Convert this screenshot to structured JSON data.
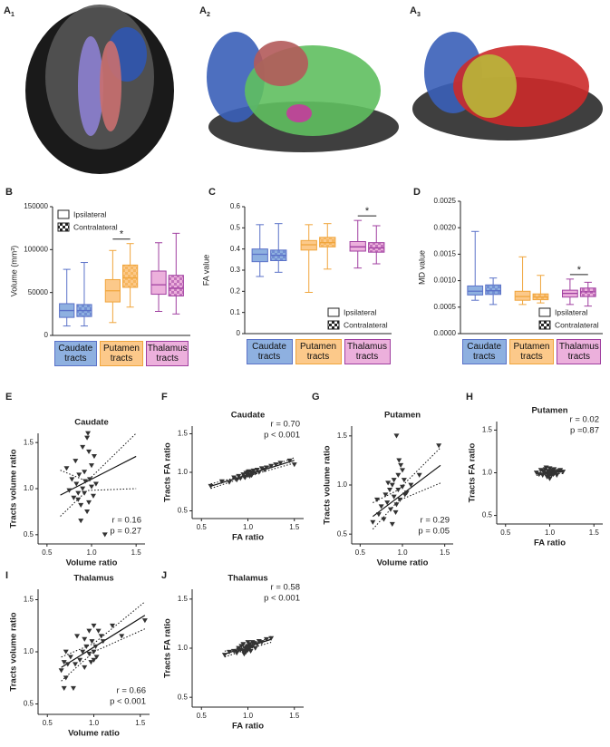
{
  "images": [
    {
      "label": "A",
      "sub": "1"
    },
    {
      "label": "A",
      "sub": "2"
    },
    {
      "label": "A",
      "sub": "3"
    }
  ],
  "chart_data": [
    {
      "type": "box",
      "panel": "B",
      "ylabel": "Volume (mm³)",
      "categories": [
        "Caudate tracts",
        "Putamen tracts",
        "Thalamus tracts"
      ],
      "category_colors": [
        "#8eb0e0",
        "#fcc98a",
        "#ecb0dc"
      ],
      "edge_colors": [
        "#5b72c8",
        "#f0a53c",
        "#a03fa0"
      ],
      "series": [
        {
          "name": "Ipsilateral",
          "pattern": "solid",
          "min": [
            11000,
            15000,
            28000
          ],
          "q1": [
            21000,
            39000,
            48000
          ],
          "median": [
            29000,
            52000,
            59000
          ],
          "q3": [
            37000,
            65000,
            75000
          ],
          "max": [
            77000,
            99000,
            108000
          ]
        },
        {
          "name": "Contralateral",
          "pattern": "checker",
          "min": [
            11000,
            33000,
            25000
          ],
          "q1": [
            22000,
            56000,
            46000
          ],
          "median": [
            29000,
            67000,
            55000
          ],
          "q3": [
            36000,
            82000,
            70000
          ],
          "max": [
            85000,
            107000,
            119000
          ]
        }
      ],
      "ylim": [
        0,
        150000
      ],
      "yticks": [
        0,
        50000,
        100000,
        150000
      ],
      "legend": "upper left",
      "annotations": [
        {
          "text": "*",
          "category": 1
        }
      ]
    },
    {
      "type": "box",
      "panel": "C",
      "ylabel": "FA value",
      "categories": [
        "Caudate tracts",
        "Putamen tracts",
        "Thalamus tracts"
      ],
      "category_colors": [
        "#8eb0e0",
        "#fcc98a",
        "#ecb0dc"
      ],
      "edge_colors": [
        "#5b72c8",
        "#f0a53c",
        "#a03fa0"
      ],
      "series": [
        {
          "name": "Ipsilateral",
          "pattern": "solid",
          "min": [
            0.27,
            0.195,
            0.31
          ],
          "q1": [
            0.34,
            0.395,
            0.39
          ],
          "median": [
            0.375,
            0.42,
            0.41
          ],
          "q3": [
            0.4,
            0.44,
            0.435
          ],
          "max": [
            0.515,
            0.515,
            0.535
          ]
        },
        {
          "name": "Contralateral",
          "pattern": "checker",
          "min": [
            0.29,
            0.305,
            0.33
          ],
          "q1": [
            0.345,
            0.41,
            0.385
          ],
          "median": [
            0.37,
            0.43,
            0.405
          ],
          "q3": [
            0.395,
            0.455,
            0.43
          ],
          "max": [
            0.52,
            0.52,
            0.51
          ]
        }
      ],
      "ylim": [
        0,
        0.6
      ],
      "yticks": [
        0,
        0.1,
        0.2,
        0.3,
        0.4,
        0.5,
        0.6
      ],
      "legend": "lower right",
      "annotations": [
        {
          "text": "*",
          "category": 2
        }
      ]
    },
    {
      "type": "box",
      "panel": "D",
      "ylabel": "MD value",
      "categories": [
        "Caudate tracts",
        "Putamen tracts",
        "Thalamus tracts"
      ],
      "category_colors": [
        "#8eb0e0",
        "#fcc98a",
        "#ecb0dc"
      ],
      "edge_colors": [
        "#5b72c8",
        "#f0a53c",
        "#a03fa0"
      ],
      "series": [
        {
          "name": "Ipsilateral",
          "pattern": "solid",
          "min": [
            0.00063,
            0.00055,
            0.00055
          ],
          "q1": [
            0.00073,
            0.00063,
            0.00069
          ],
          "median": [
            0.0008,
            0.0007,
            0.00076
          ],
          "q3": [
            0.0009,
            0.0008,
            0.00082
          ],
          "max": [
            0.00193,
            0.00145,
            0.00103
          ]
        },
        {
          "name": "Contralateral",
          "pattern": "checker",
          "min": [
            0.00055,
            0.00058,
            0.00052
          ],
          "q1": [
            0.00074,
            0.00064,
            0.0007
          ],
          "median": [
            0.00081,
            0.00069,
            0.00079
          ],
          "q3": [
            0.00092,
            0.00075,
            0.00086
          ],
          "max": [
            0.00105,
            0.0011,
            0.00097
          ]
        }
      ],
      "ylim": [
        0,
        0.0025
      ],
      "yticks": [
        {
          "value": 0,
          "label": "0.0000"
        },
        {
          "value": 0.0005,
          "label": "0.0005"
        },
        {
          "value": 0.001,
          "label": "0.0010"
        },
        {
          "value": 0.0015,
          "label": "0.0015"
        },
        {
          "value": 0.002,
          "label": "0.0020"
        },
        {
          "value": 0.0025,
          "label": "0.0025"
        }
      ],
      "legend": "lower right",
      "annotations": [
        {
          "text": "*",
          "category": 2
        }
      ]
    },
    {
      "type": "scatter",
      "panel": "E",
      "title": "Caudate",
      "xlabel": "Volume ratio",
      "ylabel": "Tracts volume ratio",
      "color": "#333333",
      "x": [
        0.72,
        0.75,
        0.78,
        0.8,
        0.82,
        0.83,
        0.85,
        0.86,
        0.88,
        0.9,
        0.9,
        0.92,
        0.93,
        0.95,
        0.96,
        0.97,
        0.98,
        1.0,
        1.0,
        1.02,
        1.03,
        1.05,
        0.88,
        0.95,
        1.15,
        0.97,
        0.92,
        0.85
      ],
      "y": [
        1.22,
        0.98,
        1.1,
        0.9,
        1.3,
        1.05,
        0.95,
        1.15,
        0.82,
        1.45,
        1.0,
        0.95,
        1.08,
        1.55,
        1.6,
        0.85,
        1.1,
        1.02,
        1.25,
        0.92,
        1.35,
        1.05,
        0.65,
        0.75,
        0.5,
        1.4,
        1.18,
        0.88
      ],
      "fit": {
        "x": [
          0.65,
          1.5
        ],
        "y": [
          0.93,
          1.35
        ]
      },
      "ci": {
        "x": [
          0.65,
          0.95,
          1.5
        ],
        "upper": [
          1.2,
          1.08,
          1.6
        ],
        "lower": [
          0.7,
          0.98,
          1.0
        ]
      },
      "stats": [
        "r = 0.16",
        "p = 0.27"
      ],
      "stats_corner": "lower right",
      "xlim": [
        0.4,
        1.6
      ],
      "ylim": [
        0.4,
        1.6
      ],
      "xticks": [
        0.5,
        {
          "value": 1,
          "label": "1.0"
        },
        1.5
      ],
      "yticks": [
        0.5,
        {
          "value": 1,
          "label": "1.0"
        },
        1.5
      ]
    },
    {
      "type": "scatter",
      "panel": "F",
      "title": "Caudate",
      "xlabel": "FA ratio",
      "ylabel": "Tracts FA ratio",
      "color": "#333333",
      "x": [
        0.6,
        0.72,
        0.8,
        0.85,
        0.88,
        0.9,
        0.92,
        0.95,
        0.96,
        0.98,
        1.0,
        1.0,
        1.02,
        1.03,
        1.05,
        1.06,
        1.08,
        1.1,
        1.12,
        1.15,
        1.18,
        1.2,
        1.25,
        1.3,
        1.35,
        1.45,
        1.5,
        0.97,
        1.01,
        1.04
      ],
      "y": [
        0.82,
        0.88,
        0.87,
        0.93,
        0.9,
        0.95,
        0.92,
        0.97,
        0.94,
        0.99,
        0.96,
        1.0,
        0.95,
        1.0,
        0.98,
        1.02,
        0.99,
        1.03,
        1.0,
        1.05,
        1.03,
        1.06,
        1.08,
        1.1,
        1.12,
        1.15,
        1.1,
        0.93,
        1.01,
        0.96
      ],
      "fit": {
        "x": [
          0.6,
          1.5
        ],
        "y": [
          0.82,
          1.155
        ]
      },
      "ci": {
        "x": [
          0.6,
          1.0,
          1.5
        ],
        "upper": [
          0.85,
          0.97,
          1.19
        ],
        "lower": [
          0.79,
          0.95,
          1.12
        ]
      },
      "stats": [
        "r = 0.70",
        "p < 0.001"
      ],
      "stats_corner": "upper right",
      "xlim": [
        0.4,
        1.6
      ],
      "ylim": [
        0.4,
        1.6
      ],
      "xticks": [
        0.5,
        {
          "value": 1,
          "label": "1.0"
        },
        1.5
      ],
      "yticks": [
        0.5,
        {
          "value": 1,
          "label": "1.0"
        },
        1.5
      ]
    },
    {
      "type": "scatter",
      "panel": "G",
      "title": "Putamen",
      "xlabel": "Volume ratio",
      "ylabel": "Tracts volume ratio",
      "color": "#333333",
      "x": [
        0.65,
        0.7,
        0.72,
        0.75,
        0.78,
        0.8,
        0.82,
        0.85,
        0.86,
        0.88,
        0.9,
        0.9,
        0.92,
        0.93,
        0.95,
        0.95,
        0.97,
        0.98,
        1.0,
        1.0,
        1.02,
        1.05,
        1.1,
        1.2,
        1.43,
        0.93,
        0.88,
        0.83,
        0.96,
        1.03
      ],
      "y": [
        0.62,
        0.85,
        0.7,
        0.78,
        0.65,
        0.9,
        0.82,
        0.95,
        0.75,
        1.0,
        0.88,
        1.05,
        0.72,
        1.5,
        0.95,
        1.1,
        0.85,
        1.2,
        0.98,
        1.15,
        1.05,
        0.92,
        1.0,
        1.1,
        1.4,
        0.8,
        0.6,
        1.02,
        1.25,
        0.9
      ],
      "fit": {
        "x": [
          0.65,
          1.45
        ],
        "y": [
          0.68,
          1.2
        ]
      },
      "ci": {
        "x": [
          0.65,
          0.95,
          1.45
        ],
        "upper": [
          0.82,
          0.95,
          1.38
        ],
        "lower": [
          0.55,
          0.84,
          1.02
        ]
      },
      "stats": [
        "r = 0.29",
        "p = 0.05"
      ],
      "stats_corner": "lower right",
      "xlim": [
        0.4,
        1.6
      ],
      "ylim": [
        0.4,
        1.6
      ],
      "xticks": [
        0.5,
        {
          "value": 1,
          "label": "1.0"
        },
        1.5
      ],
      "yticks": [
        0.5,
        {
          "value": 1,
          "label": "1.0"
        },
        1.5
      ]
    },
    {
      "type": "scatter",
      "panel": "H",
      "title": "Putamen",
      "xlabel": "FA ratio",
      "ylabel": "Tracts FA ratio",
      "color": "#333333",
      "x": [
        0.85,
        0.88,
        0.9,
        0.92,
        0.93,
        0.95,
        0.95,
        0.97,
        0.98,
        0.98,
        1.0,
        1.0,
        1.0,
        1.02,
        1.02,
        1.03,
        1.05,
        1.05,
        1.07,
        1.08,
        1.1,
        1.12,
        1.15,
        0.96,
        0.99,
        1.01,
        1.04,
        0.94,
        1.06,
        1.0
      ],
      "y": [
        1.0,
        0.98,
        1.03,
        0.97,
        1.01,
        0.99,
        1.04,
        0.95,
        1.02,
        0.98,
        1.0,
        1.05,
        0.93,
        1.01,
        0.97,
        1.03,
        0.99,
        1.04,
        1.0,
        0.97,
        1.02,
        1.03,
        1.01,
        1.06,
        0.96,
        1.0,
        0.98,
        1.02,
        1.01,
        0.99
      ],
      "fit": {
        "x": [
          0.85,
          1.15
        ],
        "y": [
          0.99,
          1.01
        ]
      },
      "ci": {
        "x": [
          0.85,
          1.0,
          1.15
        ],
        "upper": [
          1.02,
          1.005,
          1.03
        ],
        "lower": [
          0.97,
          0.995,
          0.99
        ]
      },
      "stats": [
        "r = 0.02",
        "p =0.87"
      ],
      "stats_corner": "upper right",
      "xlim": [
        0.4,
        1.6
      ],
      "ylim": [
        0.4,
        1.6
      ],
      "xticks": [
        0.5,
        {
          "value": 1,
          "label": "1.0"
        },
        1.5
      ],
      "yticks": [
        0.5,
        {
          "value": 1,
          "label": "1.0"
        },
        1.5
      ]
    },
    {
      "type": "scatter",
      "panel": "I",
      "title": "Thalamus",
      "xlabel": "Volume ratio",
      "ylabel": "Tracts volume ratio",
      "color": "#333333",
      "x": [
        0.65,
        0.68,
        0.7,
        0.7,
        0.72,
        0.75,
        0.78,
        0.8,
        0.82,
        0.85,
        0.88,
        0.9,
        0.92,
        0.95,
        0.95,
        0.97,
        0.98,
        1.0,
        1.0,
        1.02,
        1.03,
        1.05,
        1.08,
        1.1,
        1.2,
        1.3,
        1.55,
        0.68,
        0.9,
        1.0
      ],
      "y": [
        0.82,
        0.9,
        0.75,
        1.0,
        0.88,
        0.95,
        0.65,
        0.88,
        1.15,
        0.92,
        1.0,
        0.85,
        1.05,
        0.98,
        1.2,
        0.9,
        1.1,
        1.0,
        1.25,
        1.05,
        0.95,
        1.2,
        1.15,
        1.1,
        1.25,
        1.15,
        1.3,
        0.65,
        1.12,
        0.92
      ],
      "fit": {
        "x": [
          0.65,
          1.55
        ],
        "y": [
          0.85,
          1.35
        ]
      },
      "ci": {
        "x": [
          0.65,
          1.0,
          1.55
        ],
        "upper": [
          0.95,
          1.08,
          1.48
        ],
        "lower": [
          0.72,
          1.0,
          1.22
        ]
      },
      "stats": [
        "r = 0.66",
        "p < 0.001"
      ],
      "stats_corner": "lower right",
      "xlim": [
        0.4,
        1.6
      ],
      "ylim": [
        0.4,
        1.6
      ],
      "xticks": [
        0.5,
        {
          "value": 1,
          "label": "1.0"
        },
        1.5
      ],
      "yticks": [
        0.5,
        {
          "value": 1,
          "label": "1.0"
        },
        1.5
      ]
    },
    {
      "type": "scatter",
      "panel": "J",
      "title": "Thalamus",
      "xlabel": "FA ratio",
      "ylabel": "Tracts FA ratio",
      "color": "#333333",
      "x": [
        0.75,
        0.8,
        0.85,
        0.88,
        0.9,
        0.92,
        0.93,
        0.95,
        0.95,
        0.97,
        0.98,
        1.0,
        1.0,
        1.0,
        1.02,
        1.02,
        1.03,
        1.05,
        1.05,
        1.07,
        1.08,
        1.1,
        1.12,
        1.15,
        1.2,
        1.25,
        0.96,
        0.99,
        1.04,
        0.9
      ],
      "y": [
        0.93,
        0.96,
        0.97,
        0.95,
        1.0,
        0.98,
        1.02,
        0.97,
        1.04,
        1.0,
        0.96,
        1.02,
        0.98,
        1.06,
        1.0,
        1.04,
        0.97,
        1.02,
        1.06,
        1.05,
        1.0,
        1.04,
        1.07,
        1.06,
        1.09,
        1.1,
        0.94,
        1.01,
        1.02,
        0.98
      ],
      "fit": {
        "x": [
          0.75,
          1.25
        ],
        "y": [
          0.94,
          1.09
        ]
      },
      "ci": {
        "x": [
          0.75,
          1.0,
          1.25
        ],
        "upper": [
          0.97,
          1.01,
          1.12
        ],
        "lower": [
          0.91,
          0.99,
          1.06
        ]
      },
      "stats": [
        "r = 0.58",
        "p < 0.001"
      ],
      "stats_corner": "upper right",
      "xlim": [
        0.4,
        1.6
      ],
      "ylim": [
        0.4,
        1.6
      ],
      "xticks": [
        0.5,
        {
          "value": 1,
          "label": "1.0"
        },
        1.5
      ],
      "yticks": [
        0.5,
        {
          "value": 1,
          "label": "1.0"
        },
        1.5
      ]
    }
  ]
}
